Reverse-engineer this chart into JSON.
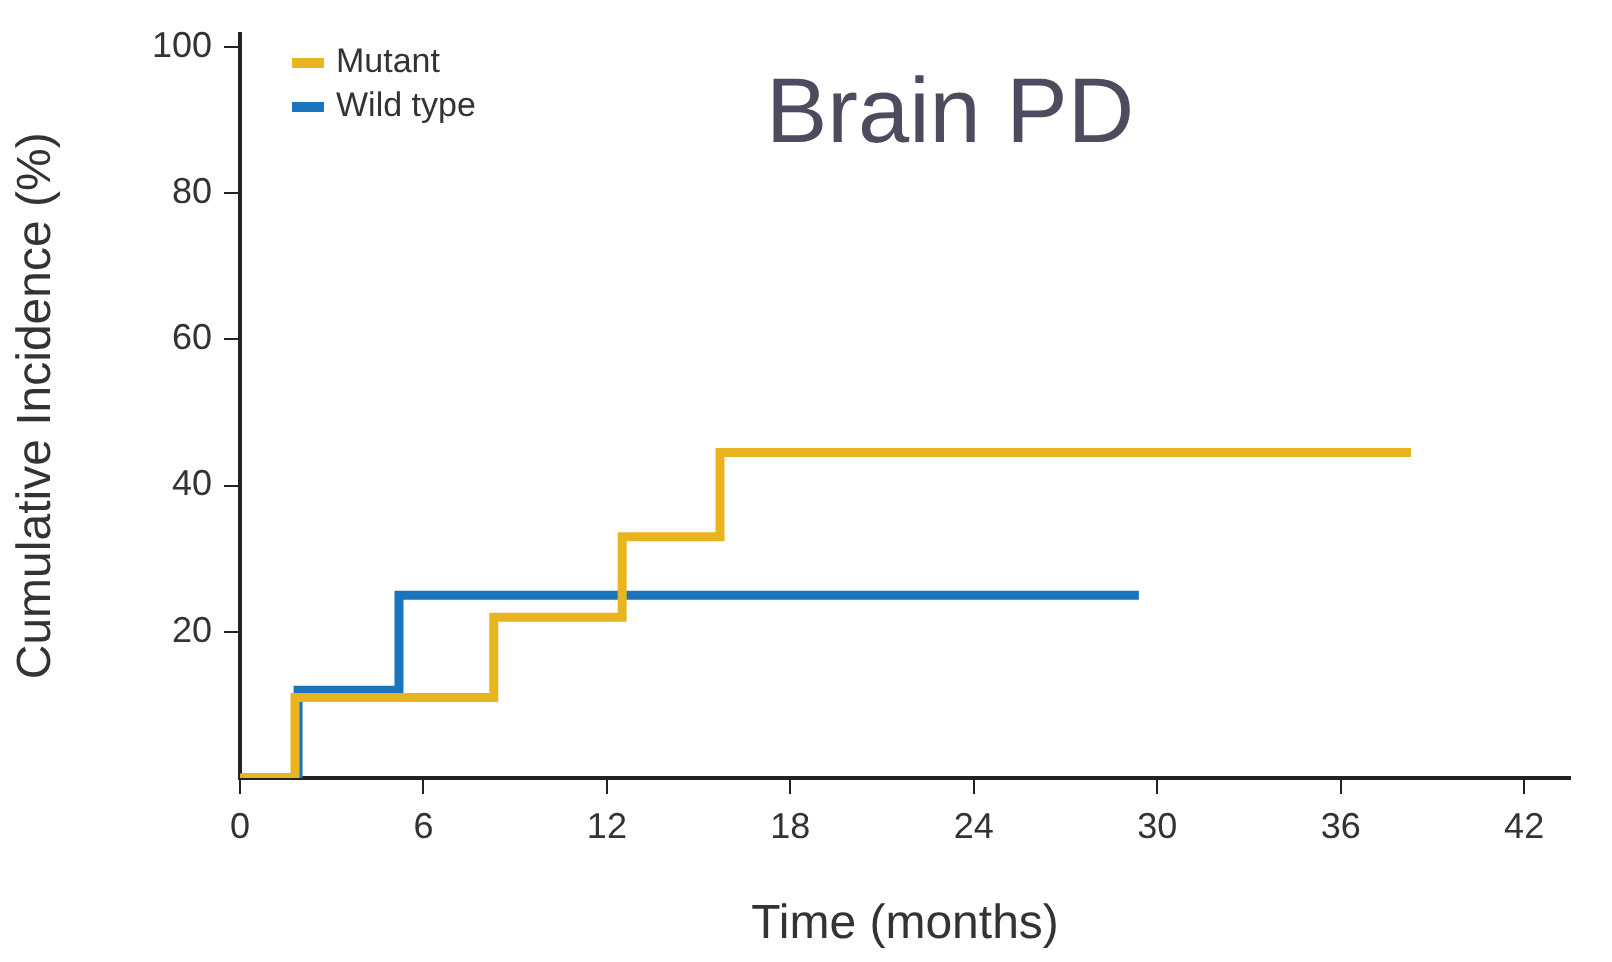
{
  "chart_data": {
    "type": "step",
    "title": "Brain PD",
    "xlabel": "Time (months)",
    "ylabel": "Cumulative Incidence (%)",
    "series": [
      {
        "name": "Mutant",
        "color": "#e8b521",
        "x": [
          0,
          1.8,
          8.3,
          12.5,
          15.7,
          38.3
        ],
        "values": [
          0,
          11,
          22,
          33,
          44.5,
          44.5
        ]
      },
      {
        "name": "Wild type",
        "color": "#1a75bc",
        "x": [
          0,
          1.9,
          5.2,
          29.4
        ],
        "values": [
          0,
          12,
          25,
          25
        ]
      }
    ],
    "xlim": [
      0,
      43.5
    ],
    "xticks": [
      0,
      6,
      12,
      18,
      24,
      30,
      36,
      42
    ],
    "ylim": [
      0,
      101.8
    ],
    "yticks": [
      20,
      40,
      60,
      80,
      100
    ],
    "grid": false,
    "legend": "top left"
  }
}
